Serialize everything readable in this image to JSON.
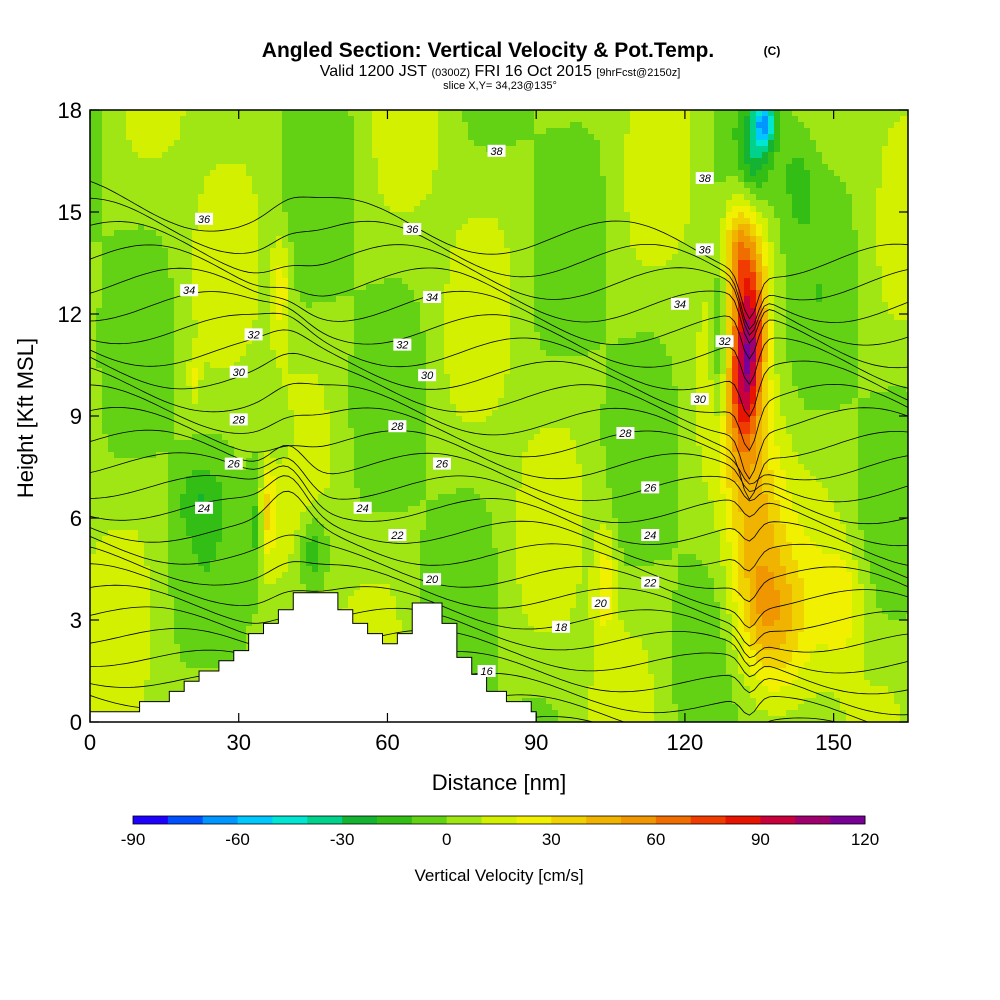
{
  "title": {
    "main": "Angled Section: Vertical Velocity & Pot.Temp.",
    "copyright": "(C)",
    "valid_a": "Valid 1200 JST",
    "valid_b": "(0300Z)",
    "valid_c": "FRI 16 Oct 2015",
    "valid_d": "[9hrFcst@2150z]",
    "slice": "slice X,Y= 34,23@135°"
  },
  "chart_data": {
    "type": "heatmap",
    "xlabel": "Distance [nm]",
    "ylabel": "Height [Kft MSL]",
    "xlim": [
      0,
      165
    ],
    "ylim": [
      0,
      18
    ],
    "x_ticks": [
      0,
      30,
      60,
      90,
      120,
      150
    ],
    "y_ticks": [
      0,
      3,
      6,
      9,
      12,
      15,
      18
    ],
    "x_tick_labels": [
      "0",
      "30",
      "60",
      "90",
      "120",
      "150"
    ],
    "y_tick_labels": [
      "0",
      "3",
      "6",
      "9",
      "12",
      "15",
      "18"
    ],
    "colorbar": {
      "title": "Vertical Velocity [cm/s]",
      "min": -90,
      "max": 120,
      "step": 10,
      "tick_values": [
        -90,
        -60,
        -30,
        0,
        30,
        60,
        90,
        120
      ],
      "tick_labels": [
        "-90",
        "-60",
        "-30",
        "0",
        "30",
        "60",
        "90",
        "120"
      ],
      "colors": [
        "#1e00ff",
        "#0050ff",
        "#0096ff",
        "#00c8ff",
        "#00e6d2",
        "#00d28c",
        "#14b432",
        "#32be14",
        "#64d214",
        "#a0e614",
        "#d2f000",
        "#f0f000",
        "#f0d200",
        "#f0b400",
        "#f09600",
        "#f06e00",
        "#f03c00",
        "#e61400",
        "#c8003c",
        "#a0006e",
        "#780096"
      ]
    },
    "terrain_profile": [
      [
        0,
        0.3
      ],
      [
        10,
        0.3
      ],
      [
        10,
        0.6
      ],
      [
        16,
        0.6
      ],
      [
        16,
        0.9
      ],
      [
        19,
        0.9
      ],
      [
        19,
        1.2
      ],
      [
        22,
        1.2
      ],
      [
        22,
        1.5
      ],
      [
        26,
        1.5
      ],
      [
        26,
        1.8
      ],
      [
        29,
        1.8
      ],
      [
        29,
        2.1
      ],
      [
        32,
        2.1
      ],
      [
        32,
        2.6
      ],
      [
        35,
        2.6
      ],
      [
        35,
        2.9
      ],
      [
        38,
        2.9
      ],
      [
        38,
        3.3
      ],
      [
        41,
        3.3
      ],
      [
        41,
        3.8
      ],
      [
        50,
        3.8
      ],
      [
        50,
        3.3
      ],
      [
        53,
        3.3
      ],
      [
        53,
        2.9
      ],
      [
        56,
        2.9
      ],
      [
        56,
        2.6
      ],
      [
        59,
        2.6
      ],
      [
        59,
        2.3
      ],
      [
        62,
        2.3
      ],
      [
        62,
        2.6
      ],
      [
        65,
        2.6
      ],
      [
        65,
        3.5
      ],
      [
        71,
        3.5
      ],
      [
        71,
        2.9
      ],
      [
        74,
        2.9
      ],
      [
        74,
        1.9
      ],
      [
        77,
        1.9
      ],
      [
        77,
        1.4
      ],
      [
        80,
        1.4
      ],
      [
        80,
        0.9
      ],
      [
        84,
        0.9
      ],
      [
        84,
        0.6
      ],
      [
        89,
        0.6
      ],
      [
        89,
        0.3
      ],
      [
        90,
        0.3
      ]
    ],
    "isentrope_values_K": [
      14,
      15,
      16,
      17,
      18,
      19,
      20,
      21,
      22,
      23,
      24,
      25,
      26,
      27,
      28,
      29,
      30,
      31,
      32,
      33,
      34,
      35,
      36,
      37,
      38,
      39
    ],
    "isentrope_labels": [
      {
        "value": "38",
        "x": 82,
        "y": 16.8
      },
      {
        "value": "38",
        "x": 124,
        "y": 16.0
      },
      {
        "value": "36",
        "x": 23,
        "y": 14.8
      },
      {
        "value": "36",
        "x": 65,
        "y": 14.5
      },
      {
        "value": "36",
        "x": 124,
        "y": 13.9
      },
      {
        "value": "34",
        "x": 20,
        "y": 12.7
      },
      {
        "value": "34",
        "x": 69,
        "y": 12.5
      },
      {
        "value": "34",
        "x": 119,
        "y": 12.3
      },
      {
        "value": "32",
        "x": 33,
        "y": 11.4
      },
      {
        "value": "32",
        "x": 63,
        "y": 11.1
      },
      {
        "value": "32",
        "x": 128,
        "y": 11.2
      },
      {
        "value": "30",
        "x": 30,
        "y": 10.3
      },
      {
        "value": "30",
        "x": 68,
        "y": 10.2
      },
      {
        "value": "30",
        "x": 123,
        "y": 9.5
      },
      {
        "value": "28",
        "x": 30,
        "y": 8.9
      },
      {
        "value": "28",
        "x": 62,
        "y": 8.7
      },
      {
        "value": "28",
        "x": 108,
        "y": 8.5
      },
      {
        "value": "26",
        "x": 29,
        "y": 7.6
      },
      {
        "value": "26",
        "x": 71,
        "y": 7.6
      },
      {
        "value": "26",
        "x": 113,
        "y": 6.9
      },
      {
        "value": "24",
        "x": 23,
        "y": 6.3
      },
      {
        "value": "24",
        "x": 55,
        "y": 6.3
      },
      {
        "value": "24",
        "x": 113,
        "y": 5.5
      },
      {
        "value": "22",
        "x": 62,
        "y": 5.5
      },
      {
        "value": "22",
        "x": 113,
        "y": 4.1
      },
      {
        "value": "20",
        "x": 69,
        "y": 4.2
      },
      {
        "value": "20",
        "x": 103,
        "y": 3.5
      },
      {
        "value": "18",
        "x": 95,
        "y": 2.8
      },
      {
        "value": "16",
        "x": 80,
        "y": 1.5
      }
    ]
  }
}
